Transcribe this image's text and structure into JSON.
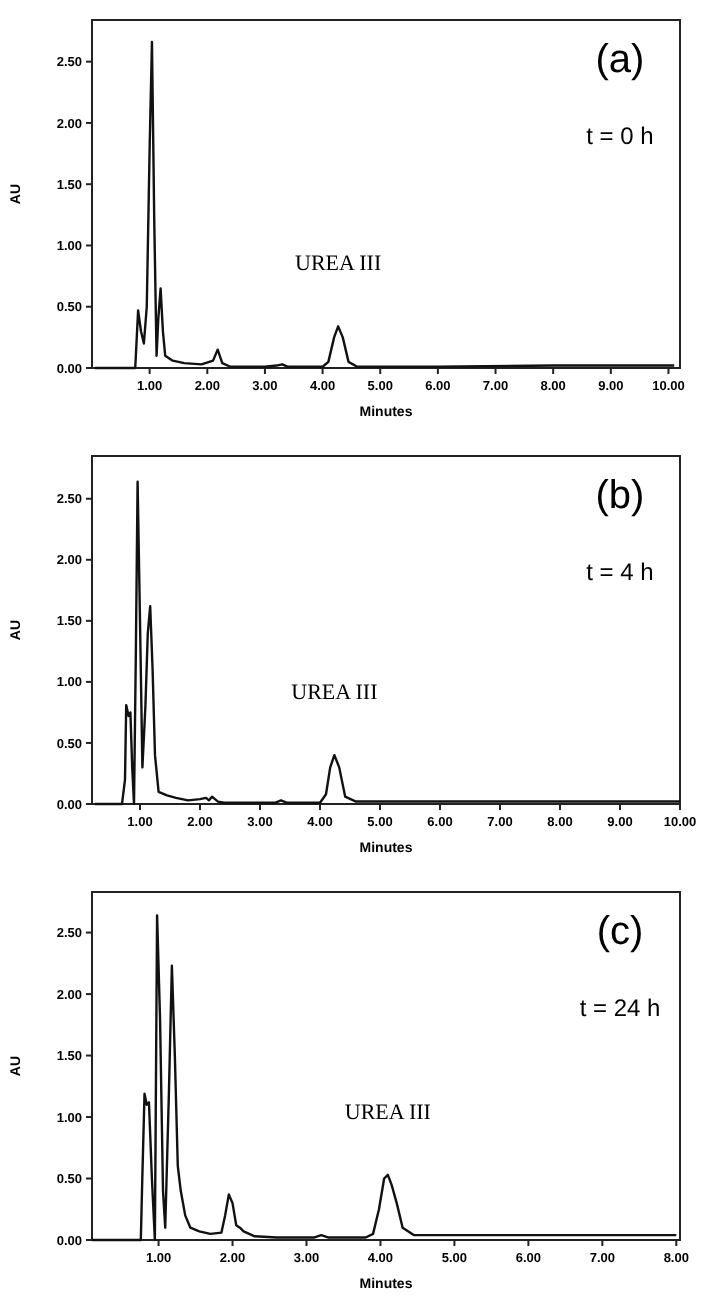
{
  "chart_data": [
    {
      "type": "line",
      "title": "(a)",
      "subtitle": "t = 0 h",
      "xlabel": "Minutes",
      "ylabel": "AU",
      "xlim": [
        0,
        10.2
      ],
      "ylim": [
        0,
        2.84
      ],
      "xticks": [
        {
          "value": 1,
          "label": "1.00"
        },
        {
          "value": 2,
          "label": "2.00"
        },
        {
          "value": 3,
          "label": "3.00"
        },
        {
          "value": 4,
          "label": "4.00"
        },
        {
          "value": 5,
          "label": "5.00"
        },
        {
          "value": 6,
          "label": "6.00"
        },
        {
          "value": 7,
          "label": "7.00"
        },
        {
          "value": 8,
          "label": "8.00"
        },
        {
          "value": 9,
          "label": "9.00"
        },
        {
          "value": 10,
          "label": "10.00"
        }
      ],
      "yticks": [
        {
          "value": 0,
          "label": "0.00"
        },
        {
          "value": 0.5,
          "label": "0.50"
        },
        {
          "value": 1,
          "label": "1.00"
        },
        {
          "value": 1.5,
          "label": "1.50"
        },
        {
          "value": 2,
          "label": "2.00"
        },
        {
          "value": 2.5,
          "label": "2.50"
        }
      ],
      "annotations": [
        {
          "text": "UREA III",
          "x": 4.27,
          "y": 0.34
        }
      ],
      "series": [
        {
          "color": "#111111",
          "x": [
            0.05,
            0.5,
            0.75,
            0.8,
            0.85,
            0.9,
            0.95,
            1.0,
            1.04,
            1.08,
            1.12,
            1.15,
            1.19,
            1.23,
            1.27,
            1.4,
            1.6,
            1.9,
            2.1,
            2.18,
            2.26,
            2.4,
            3.0,
            3.2,
            3.3,
            3.4,
            4.0,
            4.1,
            4.2,
            4.27,
            4.35,
            4.45,
            4.6,
            5.0,
            6.0,
            8.0,
            10.1
          ],
          "values": [
            0,
            0,
            0,
            0.47,
            0.3,
            0.2,
            0.5,
            1.8,
            2.66,
            1.2,
            0.1,
            0.4,
            0.65,
            0.3,
            0.1,
            0.06,
            0.04,
            0.03,
            0.06,
            0.15,
            0.04,
            0.01,
            0.01,
            0.02,
            0.03,
            0.01,
            0.01,
            0.05,
            0.25,
            0.34,
            0.25,
            0.05,
            0.01,
            0.01,
            0.01,
            0.02,
            0.02
          ]
        }
      ]
    },
    {
      "type": "line",
      "title": "(b)",
      "subtitle": "t = 4 h",
      "xlabel": "Minutes",
      "ylabel": "AU",
      "xlim": [
        0.2,
        10
      ],
      "ylim": [
        0,
        2.85
      ],
      "xticks": [
        {
          "value": 1,
          "label": "1.00"
        },
        {
          "value": 2,
          "label": "2.00"
        },
        {
          "value": 3,
          "label": "3.00"
        },
        {
          "value": 4,
          "label": "4.00"
        },
        {
          "value": 5,
          "label": "5.00"
        },
        {
          "value": 6,
          "label": "6.00"
        },
        {
          "value": 7,
          "label": "7.00"
        },
        {
          "value": 8,
          "label": "8.00"
        },
        {
          "value": 9,
          "label": "9.00"
        },
        {
          "value": 10,
          "label": "10.00"
        }
      ],
      "yticks": [
        {
          "value": 0,
          "label": "0.00"
        },
        {
          "value": 0.5,
          "label": "0.50"
        },
        {
          "value": 1,
          "label": "1.00"
        },
        {
          "value": 1.5,
          "label": "1.50"
        },
        {
          "value": 2,
          "label": "2.00"
        },
        {
          "value": 2.5,
          "label": "2.50"
        }
      ],
      "annotations": [
        {
          "text": "UREA III",
          "x": 4.24,
          "y": 0.4
        }
      ],
      "series": [
        {
          "color": "#111111",
          "x": [
            0.25,
            0.7,
            0.75,
            0.77,
            0.81,
            0.84,
            0.87,
            0.9,
            0.93,
            0.96,
            1.0,
            1.04,
            1.09,
            1.13,
            1.17,
            1.21,
            1.25,
            1.31,
            1.45,
            1.6,
            1.8,
            2.0,
            2.1,
            2.15,
            2.2,
            2.3,
            2.4,
            3.0,
            3.25,
            3.35,
            3.45,
            4.0,
            4.1,
            4.17,
            4.24,
            4.32,
            4.42,
            4.6,
            5.0,
            7.0,
            10.0
          ],
          "values": [
            0,
            0,
            0.2,
            0.81,
            0.72,
            0.75,
            0.3,
            0,
            1.2,
            2.64,
            1.5,
            0.3,
            0.8,
            1.4,
            1.62,
            1.1,
            0.4,
            0.1,
            0.07,
            0.05,
            0.03,
            0.04,
            0.05,
            0.03,
            0.06,
            0.02,
            0.01,
            0.01,
            0.01,
            0.03,
            0.01,
            0.01,
            0.08,
            0.3,
            0.4,
            0.3,
            0.06,
            0.02,
            0.02,
            0.02,
            0.02
          ]
        }
      ]
    },
    {
      "type": "line",
      "title": "(c)",
      "subtitle": "t = 24 h",
      "xlabel": "Minutes",
      "ylabel": "AU",
      "xlim": [
        0.1,
        8.05
      ],
      "ylim": [
        0,
        2.83
      ],
      "xticks": [
        {
          "value": 1,
          "label": "1.00"
        },
        {
          "value": 2,
          "label": "2.00"
        },
        {
          "value": 3,
          "label": "3.00"
        },
        {
          "value": 4,
          "label": "4.00"
        },
        {
          "value": 5,
          "label": "5.00"
        },
        {
          "value": 6,
          "label": "6.00"
        },
        {
          "value": 7,
          "label": "7.00"
        },
        {
          "value": 8,
          "label": "8.00"
        }
      ],
      "yticks": [
        {
          "value": 0,
          "label": "0.00"
        },
        {
          "value": 0.5,
          "label": "0.50"
        },
        {
          "value": 1,
          "label": "1.00"
        },
        {
          "value": 1.5,
          "label": "1.50"
        },
        {
          "value": 2,
          "label": "2.00"
        },
        {
          "value": 2.5,
          "label": "2.50"
        }
      ],
      "annotations": [
        {
          "text": "UREA III",
          "x": 4.1,
          "y": 0.53
        }
      ],
      "series": [
        {
          "color": "#111111",
          "x": [
            0.1,
            0.76,
            0.78,
            0.81,
            0.84,
            0.87,
            0.91,
            0.95,
            0.98,
            1.02,
            1.06,
            1.09,
            1.14,
            1.18,
            1.22,
            1.26,
            1.3,
            1.36,
            1.43,
            1.55,
            1.7,
            1.85,
            1.9,
            1.95,
            2.0,
            2.05,
            2.1,
            2.15,
            2.3,
            2.6,
            3.1,
            3.2,
            3.3,
            3.8,
            3.9,
            3.98,
            4.05,
            4.1,
            4.15,
            4.22,
            4.3,
            4.45,
            5.0,
            6.0,
            8.0
          ],
          "values": [
            0,
            0,
            0.5,
            1.19,
            1.1,
            1.12,
            0.5,
            0,
            2.64,
            1.8,
            0.4,
            0.1,
            1.2,
            2.23,
            1.5,
            0.6,
            0.4,
            0.2,
            0.1,
            0.07,
            0.05,
            0.06,
            0.2,
            0.37,
            0.3,
            0.12,
            0.1,
            0.07,
            0.03,
            0.02,
            0.02,
            0.04,
            0.02,
            0.02,
            0.05,
            0.25,
            0.5,
            0.53,
            0.45,
            0.3,
            0.1,
            0.04,
            0.04,
            0.04,
            0.04
          ]
        }
      ]
    }
  ]
}
